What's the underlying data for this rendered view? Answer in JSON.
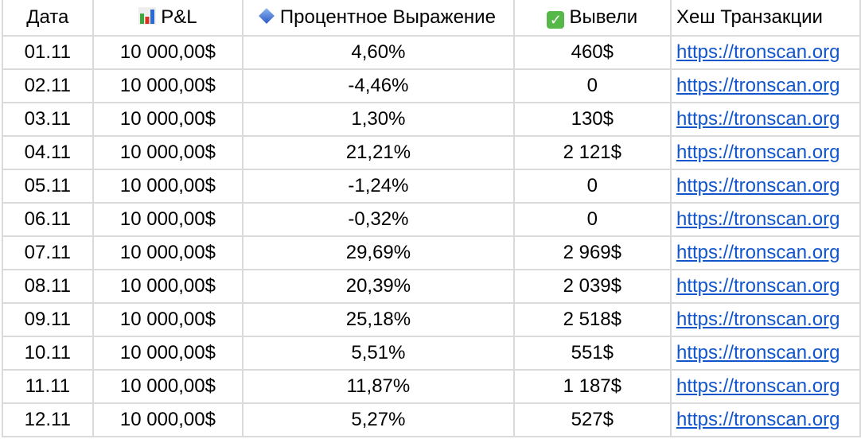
{
  "headers": [
    {
      "label": "Дата",
      "icon": null
    },
    {
      "label": "P&L",
      "icon": "bar-chart-icon"
    },
    {
      "label": "Процентное Выражение",
      "icon": "blue-diamond-icon"
    },
    {
      "label": "Вывели",
      "icon": "check-mark-icon"
    },
    {
      "label": "Хеш Транзакции",
      "icon": null
    }
  ],
  "rows": [
    {
      "date": "01.11",
      "pnl": "10 000,00$",
      "pct": "4,60%",
      "withdrawn": "460$",
      "hash": "https://tronscan.org"
    },
    {
      "date": "02.11",
      "pnl": "10 000,00$",
      "pct": "-4,46%",
      "withdrawn": "0",
      "hash": "https://tronscan.org"
    },
    {
      "date": "03.11",
      "pnl": "10 000,00$",
      "pct": "1,30%",
      "withdrawn": "130$",
      "hash": "https://tronscan.org"
    },
    {
      "date": "04.11",
      "pnl": "10 000,00$",
      "pct": "21,21%",
      "withdrawn": "2 121$",
      "hash": "https://tronscan.org"
    },
    {
      "date": "05.11",
      "pnl": "10 000,00$",
      "pct": "-1,24%",
      "withdrawn": "0",
      "hash": "https://tronscan.org"
    },
    {
      "date": "06.11",
      "pnl": "10 000,00$",
      "pct": "-0,32%",
      "withdrawn": "0",
      "hash": "https://tronscan.org"
    },
    {
      "date": "07.11",
      "pnl": "10 000,00$",
      "pct": "29,69%",
      "withdrawn": "2 969$",
      "hash": "https://tronscan.org"
    },
    {
      "date": "08.11",
      "pnl": "10 000,00$",
      "pct": "20,39%",
      "withdrawn": "2 039$",
      "hash": "https://tronscan.org"
    },
    {
      "date": "09.11",
      "pnl": "10 000,00$",
      "pct": "25,18%",
      "withdrawn": "2 518$",
      "hash": "https://tronscan.org"
    },
    {
      "date": "10.11",
      "pnl": "10 000,00$",
      "pct": "5,51%",
      "withdrawn": "551$",
      "hash": "https://tronscan.org"
    },
    {
      "date": "11.11",
      "pnl": "10 000,00$",
      "pct": "11,87%",
      "withdrawn": "1 187$",
      "hash": "https://tronscan.org"
    },
    {
      "date": "12.11",
      "pnl": "10 000,00$",
      "pct": "5,27%",
      "withdrawn": "527$",
      "hash": "https://tronscan.org"
    }
  ],
  "colors": {
    "link": "#1155cc",
    "grid": "#dadada"
  }
}
